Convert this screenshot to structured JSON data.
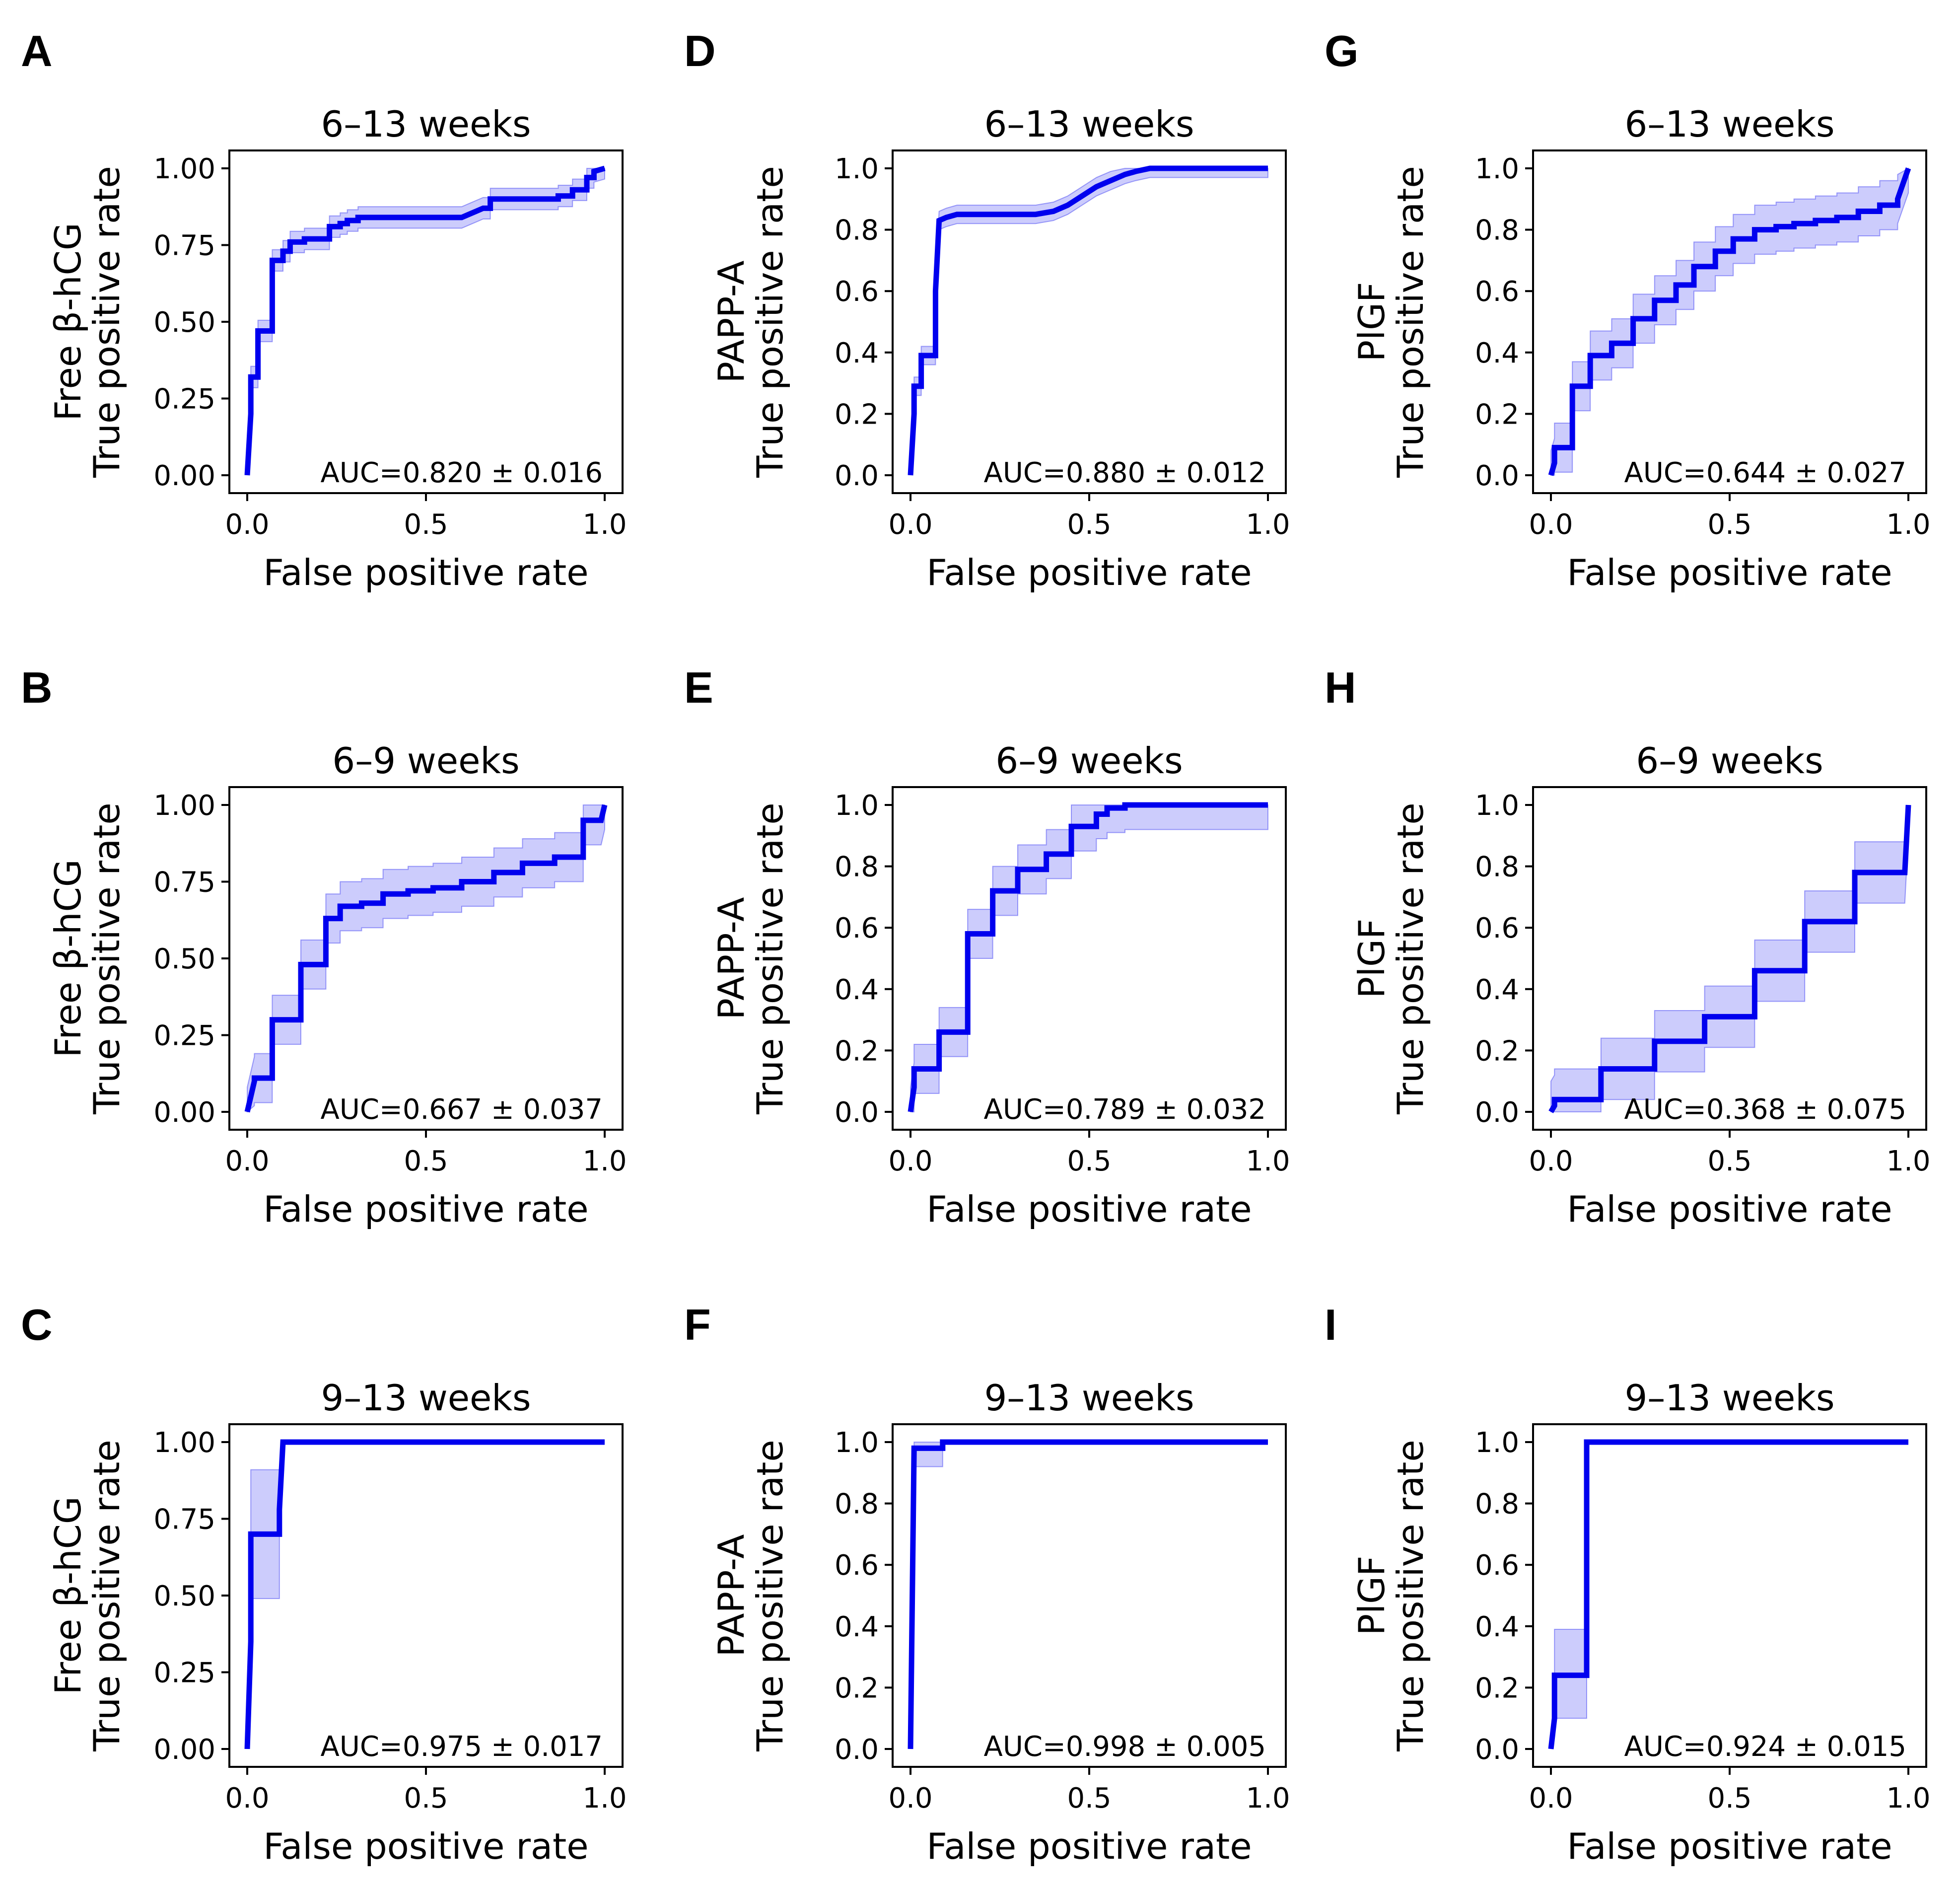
{
  "figure": {
    "x_label": "False positive rate",
    "y_label_line2": "True positive rate",
    "x_ticks": [
      "0.0",
      "0.5",
      "1.0"
    ],
    "y_ticks_two_dec": [
      "0.00",
      "0.25",
      "0.50",
      "0.75",
      "1.00"
    ],
    "y_ticks_one_dec": [
      "0.0",
      "0.2",
      "0.4",
      "0.6",
      "0.8",
      "1.0"
    ]
  },
  "chart_data": [
    {
      "id": "A",
      "type": "line",
      "title": "6–13 weeks",
      "marker": "Free β-hCG",
      "ylabel": "Free β-hCG / True positive rate",
      "xlabel": "False positive rate",
      "xlim": [
        0,
        1
      ],
      "ylim": [
        0,
        1
      ],
      "ytick_format": "two_dec",
      "auc": "AUC=0.820 ± 0.016",
      "x": [
        0,
        0.01,
        0.01,
        0.03,
        0.03,
        0.07,
        0.07,
        0.1,
        0.1,
        0.12,
        0.12,
        0.16,
        0.16,
        0.23,
        0.23,
        0.26,
        0.26,
        0.28,
        0.28,
        0.31,
        0.31,
        0.35,
        0.35,
        0.6,
        0.62,
        0.64,
        0.66,
        0.68,
        0.68,
        0.87,
        0.87,
        0.91,
        0.91,
        0.95,
        0.95,
        0.97,
        0.97,
        1.0
      ],
      "y": [
        0,
        0.2,
        0.32,
        0.32,
        0.47,
        0.47,
        0.7,
        0.7,
        0.73,
        0.73,
        0.76,
        0.76,
        0.77,
        0.77,
        0.81,
        0.81,
        0.82,
        0.82,
        0.83,
        0.83,
        0.84,
        0.84,
        0.84,
        0.84,
        0.85,
        0.86,
        0.87,
        0.87,
        0.9,
        0.9,
        0.91,
        0.91,
        0.93,
        0.93,
        0.97,
        0.97,
        0.99,
        1.0
      ],
      "band_offset": 0.035
    },
    {
      "id": "B",
      "type": "line",
      "title": "6–9 weeks",
      "marker": "Free β-hCG",
      "ylabel": "Free β-hCG / True positive rate",
      "xlabel": "False positive rate",
      "xlim": [
        0,
        1
      ],
      "ylim": [
        0,
        1
      ],
      "ytick_format": "two_dec",
      "auc": "AUC=0.667 ± 0.037",
      "x": [
        0,
        0.02,
        0.02,
        0.07,
        0.07,
        0.15,
        0.15,
        0.22,
        0.22,
        0.26,
        0.26,
        0.32,
        0.32,
        0.38,
        0.38,
        0.45,
        0.45,
        0.52,
        0.52,
        0.6,
        0.6,
        0.69,
        0.69,
        0.77,
        0.77,
        0.86,
        0.86,
        0.94,
        0.94,
        0.99,
        1.0
      ],
      "y": [
        0,
        0.1,
        0.11,
        0.11,
        0.3,
        0.3,
        0.48,
        0.48,
        0.63,
        0.63,
        0.67,
        0.67,
        0.68,
        0.68,
        0.71,
        0.71,
        0.72,
        0.72,
        0.73,
        0.73,
        0.75,
        0.75,
        0.78,
        0.78,
        0.81,
        0.81,
        0.83,
        0.83,
        0.95,
        0.95,
        1.0
      ],
      "band_offset": 0.08
    },
    {
      "id": "C",
      "type": "line",
      "title": "9–13 weeks",
      "marker": "Free β-hCG",
      "ylabel": "Free β-hCG / True positive rate",
      "xlabel": "False positive rate",
      "xlim": [
        0,
        1
      ],
      "ylim": [
        0,
        1
      ],
      "ytick_format": "two_dec",
      "auc": "AUC=0.975 ± 0.017",
      "x": [
        0,
        0.01,
        0.01,
        0.09,
        0.09,
        0.1,
        1.0
      ],
      "y": [
        0,
        0.35,
        0.7,
        0.7,
        0.78,
        1.0,
        1.0
      ],
      "band": {
        "x": [
          0.01,
          0.09
        ],
        "lo": [
          0.49,
          0.49
        ],
        "hi": [
          0.91,
          0.91
        ]
      }
    },
    {
      "id": "D",
      "type": "line",
      "title": "6–13 weeks",
      "marker": "PAPP-A",
      "ylabel": "PAPP-A / True positive rate",
      "xlabel": "False positive rate",
      "xlim": [
        0,
        1
      ],
      "ylim": [
        0,
        1
      ],
      "ytick_format": "one_dec",
      "auc": "AUC=0.880 ± 0.012",
      "x": [
        0,
        0.01,
        0.01,
        0.03,
        0.03,
        0.07,
        0.07,
        0.08,
        0.08,
        0.1,
        0.1,
        0.13,
        0.13,
        0.35,
        0.35,
        0.4,
        0.4,
        0.44,
        0.44,
        0.48,
        0.48,
        0.52,
        0.52,
        0.56,
        0.56,
        0.6,
        0.6,
        0.63,
        0.63,
        0.67,
        0.67,
        1.0
      ],
      "y": [
        0,
        0.2,
        0.29,
        0.29,
        0.39,
        0.39,
        0.6,
        0.83,
        0.83,
        0.84,
        0.84,
        0.85,
        0.85,
        0.85,
        0.85,
        0.86,
        0.86,
        0.88,
        0.88,
        0.91,
        0.91,
        0.94,
        0.94,
        0.96,
        0.96,
        0.98,
        0.98,
        0.99,
        0.99,
        1.0,
        1.0,
        1.0
      ],
      "band_offset": 0.03
    },
    {
      "id": "E",
      "type": "line",
      "title": "6–9 weeks",
      "marker": "PAPP-A",
      "ylabel": "PAPP-A / True positive rate",
      "xlabel": "False positive rate",
      "xlim": [
        0,
        1
      ],
      "ylim": [
        0,
        1
      ],
      "ytick_format": "one_dec",
      "auc": "AUC=0.789 ± 0.032",
      "x": [
        0,
        0.01,
        0.01,
        0.08,
        0.08,
        0.16,
        0.16,
        0.23,
        0.23,
        0.3,
        0.3,
        0.38,
        0.38,
        0.45,
        0.45,
        0.52,
        0.52,
        0.55,
        0.55,
        0.6,
        0.6,
        0.7,
        1.0
      ],
      "y": [
        0,
        0.08,
        0.14,
        0.14,
        0.26,
        0.26,
        0.58,
        0.58,
        0.72,
        0.72,
        0.79,
        0.79,
        0.84,
        0.84,
        0.93,
        0.93,
        0.97,
        0.97,
        0.99,
        0.99,
        1.0,
        1.0,
        1.0
      ],
      "band_offset": 0.08
    },
    {
      "id": "F",
      "type": "line",
      "title": "9–13 weeks",
      "marker": "PAPP-A",
      "ylabel": "PAPP-A / True positive rate",
      "xlabel": "False positive rate",
      "xlim": [
        0,
        1
      ],
      "ylim": [
        0,
        1
      ],
      "ytick_format": "one_dec",
      "auc": "AUC=0.998 ± 0.005",
      "x": [
        0,
        0.01,
        0.01,
        0.09,
        0.09,
        1.0
      ],
      "y": [
        0,
        0.98,
        0.98,
        0.98,
        1.0,
        1.0
      ],
      "band": {
        "x": [
          0.01,
          0.09
        ],
        "lo": [
          0.92,
          0.92
        ],
        "hi": [
          1.0,
          1.0
        ]
      }
    },
    {
      "id": "G",
      "type": "line",
      "title": "6–13 weeks",
      "marker": "PlGF",
      "ylabel": "PlGF / True positive rate",
      "xlabel": "False positive rate",
      "xlim": [
        0,
        1
      ],
      "ylim": [
        0,
        1
      ],
      "ytick_format": "one_dec",
      "auc": "AUC=0.644 ± 0.027",
      "x": [
        0,
        0.01,
        0.01,
        0.06,
        0.06,
        0.11,
        0.11,
        0.17,
        0.17,
        0.23,
        0.23,
        0.29,
        0.29,
        0.35,
        0.35,
        0.4,
        0.4,
        0.46,
        0.46,
        0.51,
        0.51,
        0.57,
        0.57,
        0.63,
        0.63,
        0.68,
        0.68,
        0.74,
        0.74,
        0.8,
        0.8,
        0.86,
        0.86,
        0.92,
        0.92,
        0.97,
        0.97,
        1.0
      ],
      "y": [
        0,
        0.04,
        0.09,
        0.09,
        0.29,
        0.29,
        0.39,
        0.39,
        0.43,
        0.43,
        0.51,
        0.51,
        0.57,
        0.57,
        0.62,
        0.62,
        0.68,
        0.68,
        0.73,
        0.73,
        0.77,
        0.77,
        0.8,
        0.8,
        0.81,
        0.81,
        0.82,
        0.82,
        0.83,
        0.83,
        0.84,
        0.84,
        0.86,
        0.86,
        0.88,
        0.88,
        0.9,
        1.0
      ],
      "band_offset": 0.08
    },
    {
      "id": "H",
      "type": "line",
      "title": "6–9 weeks",
      "marker": "PlGF",
      "ylabel": "PlGF / True positive rate",
      "xlabel": "False positive rate",
      "xlim": [
        0,
        1
      ],
      "ylim": [
        0,
        1
      ],
      "ytick_format": "one_dec",
      "auc": "AUC=0.368 ± 0.075",
      "x": [
        0,
        0.01,
        0.01,
        0.14,
        0.14,
        0.29,
        0.29,
        0.43,
        0.43,
        0.57,
        0.57,
        0.71,
        0.71,
        0.85,
        0.85,
        0.99,
        1.0
      ],
      "y": [
        0,
        0.02,
        0.04,
        0.04,
        0.14,
        0.14,
        0.23,
        0.23,
        0.31,
        0.31,
        0.46,
        0.46,
        0.62,
        0.62,
        0.78,
        0.78,
        1.0
      ],
      "band_offset": 0.1
    },
    {
      "id": "I",
      "type": "line",
      "title": "9–13 weeks",
      "marker": "PlGF",
      "ylabel": "PlGF / True positive rate",
      "xlabel": "False positive rate",
      "xlim": [
        0,
        1
      ],
      "ylim": [
        0,
        1
      ],
      "ytick_format": "one_dec",
      "auc": "AUC=0.924 ± 0.015",
      "x": [
        0,
        0.01,
        0.01,
        0.1,
        0.1,
        1.0
      ],
      "y": [
        0,
        0.1,
        0.24,
        0.24,
        1.0,
        1.0
      ],
      "band": {
        "x": [
          0.01,
          0.1
        ],
        "lo": [
          0.1,
          0.1
        ],
        "hi": [
          0.39,
          0.39
        ]
      }
    }
  ]
}
